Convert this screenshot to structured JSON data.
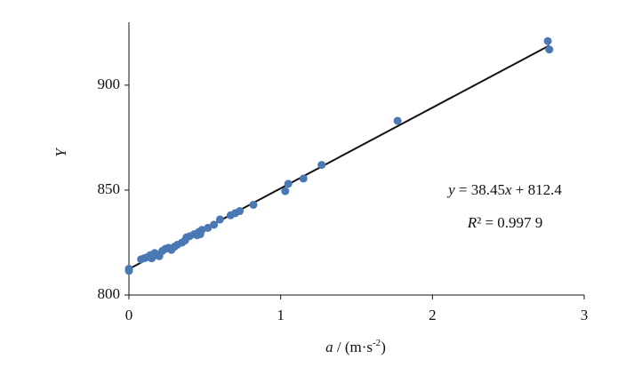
{
  "chart_data": {
    "type": "scatter",
    "xlabel": [
      "a",
      " / (m·s",
      "-2",
      ")"
    ],
    "ylabel": "Y",
    "equation": [
      "y",
      " = 38.45",
      "x",
      " + 812.4"
    ],
    "r2": [
      "R",
      "² = 0.997 9"
    ],
    "fit": {
      "slope": 38.45,
      "intercept": 812.4
    },
    "color": "#4a78b5",
    "line_color": "#111111",
    "xlim": [
      0,
      3
    ],
    "xticks": [
      0,
      1,
      2,
      3
    ],
    "ylim": [
      800,
      930
    ],
    "yticks": [
      800,
      850,
      900
    ],
    "x": [
      0,
      0,
      0.08,
      0.1,
      0.12,
      0.14,
      0.15,
      0.17,
      0.18,
      0.2,
      0.22,
      0.24,
      0.26,
      0.28,
      0.3,
      0.32,
      0.35,
      0.37,
      0.38,
      0.4,
      0.43,
      0.45,
      0.46,
      0.47,
      0.48,
      0.52,
      0.56,
      0.6,
      0.67,
      0.7,
      0.73,
      0.82,
      1.03,
      1.05,
      1.15,
      1.27,
      1.77,
      2.76,
      2.77
    ],
    "values": [
      812.5,
      811.5,
      817,
      817.5,
      818,
      819,
      817.5,
      820,
      819,
      818.5,
      821,
      822,
      822.5,
      821.5,
      823,
      824,
      825,
      826,
      827.5,
      828,
      829,
      828.5,
      830,
      829,
      831,
      832,
      833.5,
      836,
      838,
      839,
      840,
      843,
      849.5,
      853,
      855.5,
      862,
      883,
      921,
      917
    ]
  }
}
